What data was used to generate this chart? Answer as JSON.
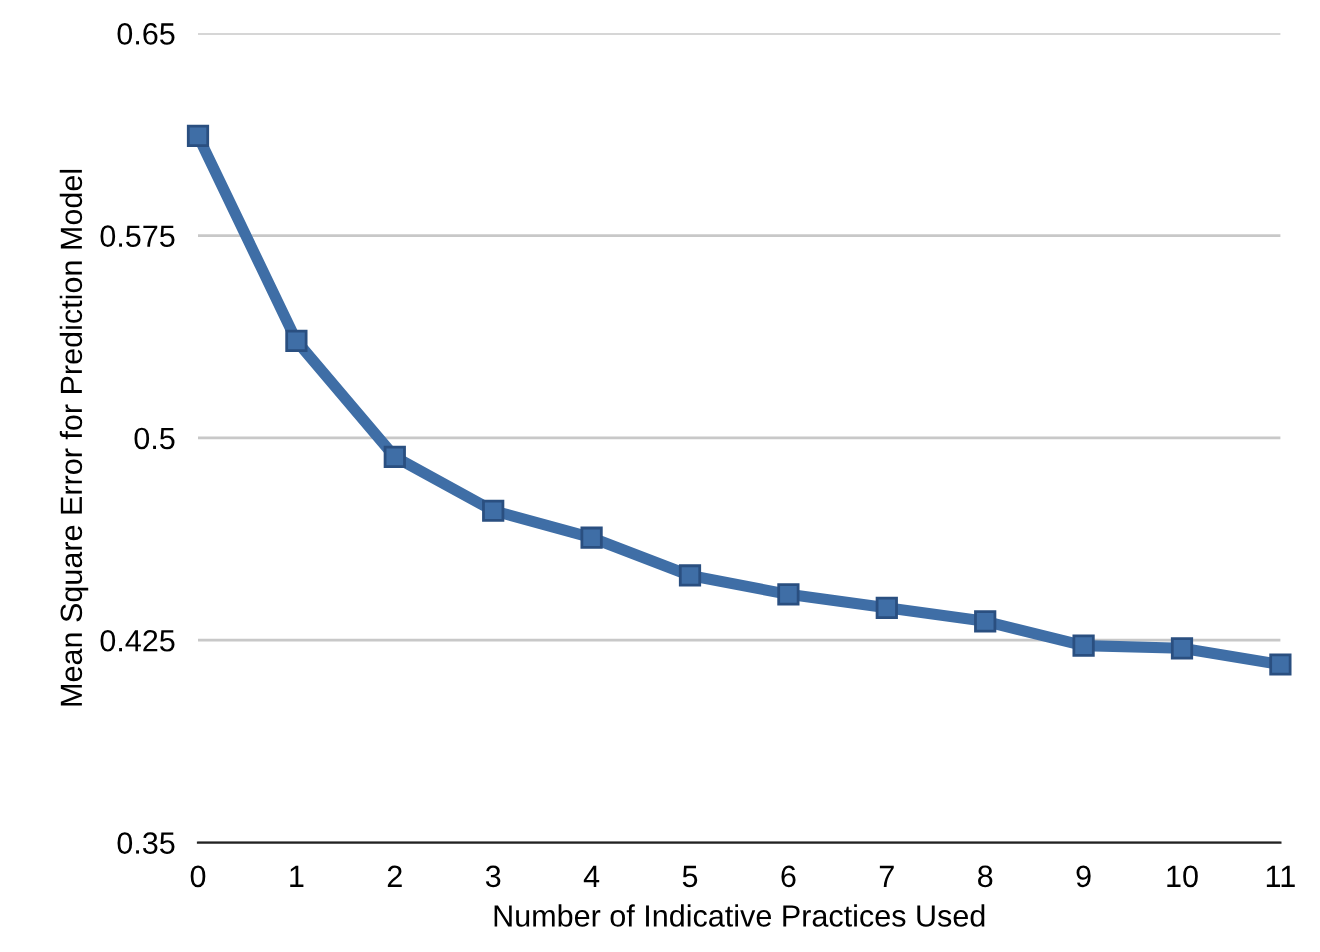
{
  "chart_data": {
    "type": "line",
    "xlabel": "Number of Indicative Practices Used",
    "ylabel": "Mean Square Error for Prediction Model",
    "x": [
      0,
      1,
      2,
      3,
      4,
      5,
      6,
      7,
      8,
      9,
      10,
      11
    ],
    "series": [
      {
        "color": "#3f6ea6",
        "values": [
          0.612,
          0.536,
          0.493,
          0.473,
          0.463,
          0.449,
          0.442,
          0.437,
          0.432,
          0.423,
          0.422,
          0.416
        ]
      }
    ],
    "xlim": [
      0,
      11
    ],
    "xticks": [
      0,
      1,
      2,
      3,
      4,
      5,
      6,
      7,
      8,
      9,
      10,
      11
    ],
    "ylim": [
      0.35,
      0.65
    ],
    "yticks": [
      0.35,
      0.425,
      0.5,
      0.575,
      0.65
    ],
    "grid": "y",
    "marker": "square",
    "line_style": "solid"
  }
}
